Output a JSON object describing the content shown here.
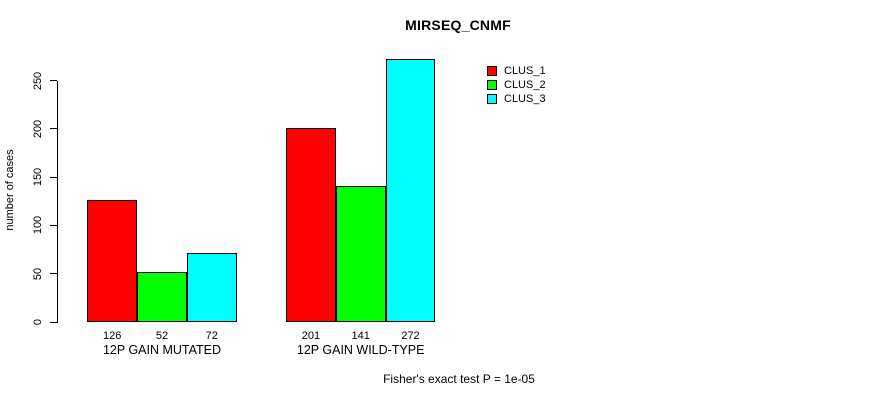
{
  "title": "MIRSEQ_CNMF",
  "caption": "Fisher's exact test P = 1e-05",
  "chart_data": {
    "type": "bar",
    "grouped_beside": true,
    "title": "MIRSEQ_CNMF",
    "categories": [
      "12P GAIN MUTATED",
      "12P GAIN WILD-TYPE"
    ],
    "series": [
      {
        "name": "CLUS_1",
        "color": "#ff0000",
        "values": [
          126,
          201
        ]
      },
      {
        "name": "CLUS_2",
        "color": "#00ff00",
        "values": [
          52,
          141
        ]
      },
      {
        "name": "CLUS_3",
        "color": "#00ffff",
        "values": [
          72,
          272
        ]
      }
    ],
    "xlabel": "",
    "ylabel": "number of cases",
    "yticks": [
      0,
      50,
      100,
      150,
      200,
      250
    ],
    "ylim": [
      0,
      250
    ],
    "show_bar_value_labels": true,
    "grid": false,
    "bar_border_color": "#000000",
    "legend_position": "top-right",
    "annotation": "Fisher's exact test P = 1e-05"
  }
}
